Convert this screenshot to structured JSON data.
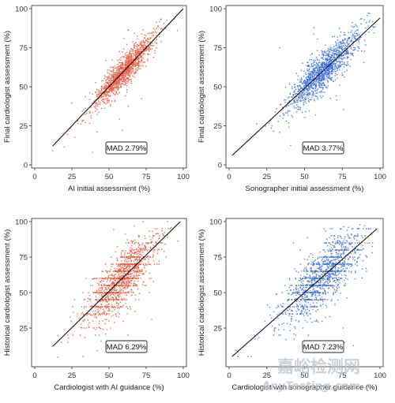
{
  "chart_data": [
    {
      "type": "scatter",
      "xlabel": "AI initial assessment (%)",
      "ylabel": "Final cardiologist assessment (%)",
      "xlim": [
        0,
        100
      ],
      "ylim": [
        0,
        100
      ],
      "xticks": [
        "0",
        "25",
        "50",
        "75",
        "100"
      ],
      "yticks": [
        "0",
        "25",
        "50",
        "75",
        "100"
      ],
      "annotation": "MAD 2.79%",
      "point_color": "#e8553a",
      "fit_line": [
        [
          12,
          12
        ],
        [
          100,
          100
        ]
      ],
      "cluster": {
        "center": [
          60,
          60
        ],
        "spread": [
          9,
          9
        ],
        "noise": 4.5,
        "dense": "discrete"
      },
      "grid": false
    },
    {
      "type": "scatter",
      "xlabel": "Sonographer initial assessment (%)",
      "ylabel": "Final cardiologist assessment (%)",
      "xlim": [
        0,
        100
      ],
      "ylim": [
        0,
        100
      ],
      "xticks": [
        "0",
        "25",
        "50",
        "75",
        "100"
      ],
      "yticks": [
        "0",
        "25",
        "50",
        "75",
        "100"
      ],
      "annotation": "MAD 3.77%",
      "point_color": "#3b6fe0",
      "fit_line": [
        [
          2,
          6
        ],
        [
          100,
          94
        ]
      ],
      "cluster": {
        "center": [
          62,
          62
        ],
        "spread": [
          11,
          11
        ],
        "noise": 6
      },
      "grid": false
    },
    {
      "type": "scatter",
      "xlabel": "Cardiologist with AI guidance (%)",
      "ylabel": "Historical cardiologist assessment (%)",
      "xlim": [
        0,
        100
      ],
      "ylim": [
        0,
        100
      ],
      "xticks": [
        "0",
        "25",
        "50",
        "75",
        "100"
      ],
      "yticks": [
        "25",
        "50",
        "75",
        "100"
      ],
      "annotation": "MAD 6.29%",
      "point_color": "#e8553a",
      "fit_line": [
        [
          12,
          12
        ],
        [
          98,
          100
        ]
      ],
      "cluster": {
        "center": [
          58,
          58
        ],
        "spread": [
          11,
          12
        ],
        "noise": 9
      },
      "grid": false
    },
    {
      "type": "scatter",
      "xlabel": "Cardiologist with sonographer guidance (%)",
      "ylabel": "Historical cardiologist assessment (%)",
      "xlim": [
        0,
        100
      ],
      "ylim": [
        0,
        100
      ],
      "xticks": [
        "0",
        "25",
        "50",
        "75",
        "100"
      ],
      "yticks": [
        "25",
        "50",
        "75",
        "100"
      ],
      "annotation": "MAD 7.23%",
      "point_color": "#3b6fe0",
      "fit_line": [
        [
          2,
          5
        ],
        [
          98,
          95
        ]
      ],
      "cluster": {
        "center": [
          62,
          62
        ],
        "spread": [
          12,
          12
        ],
        "noise": 10
      },
      "grid": false
    }
  ],
  "watermark": {
    "line1": "嘉峪检测网",
    "line2": "AnyTesting.com",
    "color": "#b9c3cc"
  }
}
